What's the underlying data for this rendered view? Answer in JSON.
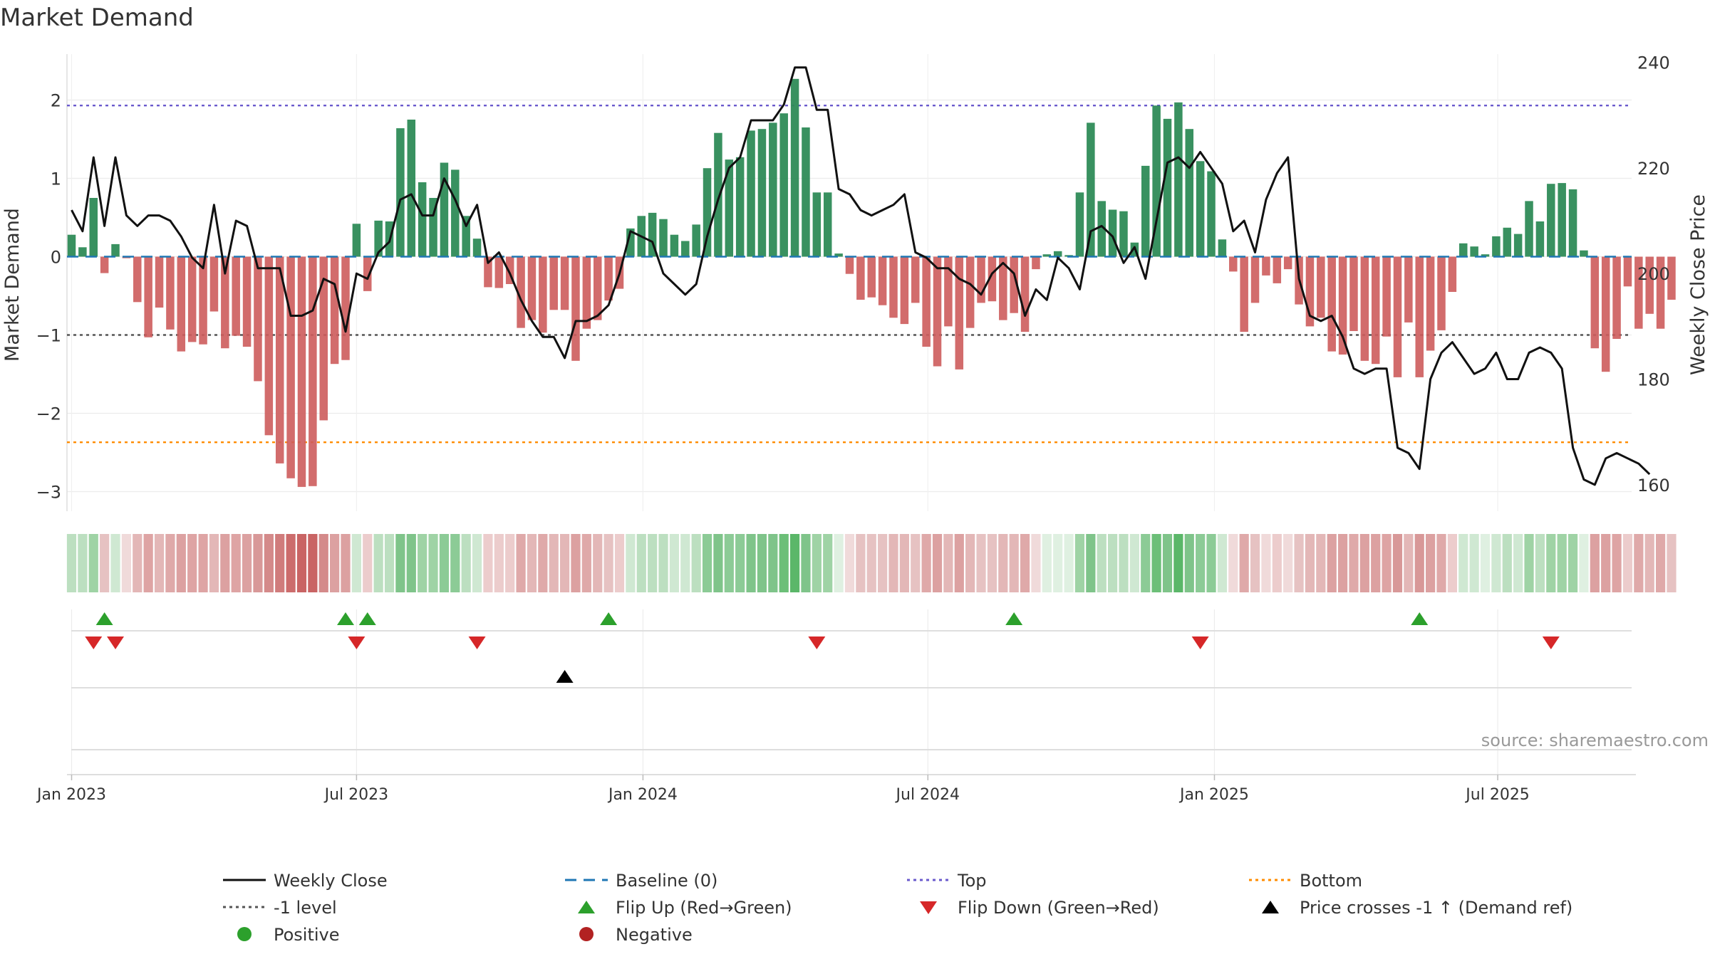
{
  "chart_data": {
    "type": "bar+line",
    "title": "Market Demand",
    "ylabel_left": "Market Demand",
    "ylabel_right": "Weekly Close Price",
    "ylim_left": [
      -3.25,
      2.55
    ],
    "ylim_right": [
      155,
      241
    ],
    "yticks_left": [
      2,
      1,
      0,
      -1,
      -2,
      -3
    ],
    "ytick_labels_left": [
      "2",
      "1",
      "0",
      "−1",
      "−2",
      "−3"
    ],
    "yticks_right": [
      240,
      220,
      200,
      180,
      160
    ],
    "ytick_labels_right": [
      "240",
      "220",
      "200",
      "180",
      "160"
    ],
    "x_tick_labels": [
      "Jan 2023",
      "Jul 2023",
      "Jan 2024",
      "Jul 2024",
      "Jan 2025",
      "Jul 2025"
    ],
    "x_tick_weeks": [
      1.0,
      27.0,
      53.14,
      79.14,
      105.29,
      131.14
    ],
    "week_count": 145,
    "reference_lines": {
      "top": 1.93,
      "minus_one": -1.0,
      "bottom": -2.37,
      "baseline": 0
    },
    "demand": [
      0.28,
      0.12,
      0.75,
      -0.21,
      0.16,
      -0.02,
      -0.58,
      -1.03,
      -0.65,
      -0.93,
      -1.21,
      -1.09,
      -1.12,
      -0.7,
      -1.17,
      -1.01,
      -1.15,
      -1.59,
      -2.28,
      -2.64,
      -2.83,
      -2.94,
      -2.93,
      -2.09,
      -1.37,
      -1.32,
      0.42,
      -0.44,
      0.46,
      0.45,
      1.64,
      1.75,
      0.95,
      0.75,
      1.2,
      1.11,
      0.52,
      0.23,
      -0.39,
      -0.4,
      -0.35,
      -0.91,
      -0.81,
      -0.97,
      -0.68,
      -0.68,
      -1.33,
      -0.92,
      -0.81,
      -0.56,
      -0.41,
      0.36,
      0.52,
      0.56,
      0.48,
      0.28,
      0.2,
      0.41,
      1.13,
      1.58,
      1.24,
      1.27,
      1.61,
      1.63,
      1.71,
      1.83,
      2.27,
      1.65,
      0.82,
      0.82,
      0.04,
      -0.22,
      -0.55,
      -0.52,
      -0.62,
      -0.78,
      -0.86,
      -0.59,
      -1.15,
      -1.4,
      -0.89,
      -1.44,
      -0.91,
      -0.59,
      -0.57,
      -0.81,
      -0.72,
      -0.96,
      -0.16,
      0.03,
      0.07,
      0.02,
      0.82,
      1.71,
      0.71,
      0.6,
      0.58,
      0.18,
      1.16,
      1.93,
      1.76,
      1.97,
      1.63,
      1.22,
      1.09,
      0.22,
      -0.19,
      -0.96,
      -0.59,
      -0.24,
      -0.34,
      -0.16,
      -0.61,
      -0.89,
      -0.78,
      -1.21,
      -1.25,
      -0.95,
      -1.33,
      -1.37,
      -1.02,
      -1.54,
      -0.84,
      -1.54,
      -1.2,
      -0.94,
      -0.45,
      0.17,
      0.13,
      0.03,
      0.26,
      0.37,
      0.29,
      0.71,
      0.45,
      0.93,
      0.94,
      0.86,
      0.08,
      -1.17,
      -1.47,
      -1.05,
      -0.38,
      -0.92,
      -0.73,
      -0.92,
      -0.55
    ],
    "close": [
      212,
      208,
      222,
      209,
      222,
      211,
      209,
      211,
      211,
      210,
      207,
      203,
      201,
      213,
      200,
      210,
      209,
      201,
      201,
      201,
      192,
      192,
      193,
      199,
      198,
      189,
      200,
      199,
      204,
      206,
      214,
      215,
      211,
      211,
      218,
      214,
      209,
      213,
      202,
      204,
      200,
      195,
      191,
      188,
      188,
      184,
      191,
      191,
      192,
      194,
      200,
      208,
      207,
      206,
      200,
      198,
      196,
      198,
      207,
      214,
      220,
      222,
      229,
      229,
      229,
      232,
      239,
      239,
      231,
      231,
      216,
      215,
      212,
      211,
      212,
      213,
      215,
      204,
      203,
      201,
      201,
      199,
      198,
      196,
      200,
      202,
      200,
      192,
      197,
      195,
      203,
      201,
      197,
      208,
      209,
      207,
      202,
      205,
      199,
      210,
      221,
      222,
      220,
      223,
      220,
      217,
      208,
      210,
      204,
      214,
      219,
      222,
      199,
      192,
      191,
      192,
      188,
      182,
      181,
      182,
      182,
      167,
      166,
      163,
      180,
      185,
      187,
      184,
      181,
      182,
      185,
      180,
      180,
      185,
      186,
      185,
      182,
      167,
      161,
      160,
      165,
      166,
      165,
      164,
      162
    ]
  },
  "strip": {
    "colors": [
      "#bcdfc0",
      "#bcdfc0",
      "#9fd3a5",
      "#e6c2c2",
      "#cfe8d2",
      "#f0dada",
      "#e3b7b7",
      "#dea4a4",
      "#e3b7b7",
      "#dfa9a9",
      "#dca1a1",
      "#dea4a4",
      "#dea4a4",
      "#e3b7b7",
      "#dca1a1",
      "#dea4a4",
      "#dca1a1",
      "#d89898",
      "#d48a8a",
      "#d07c7c",
      "#cc6c6c",
      "#c96464",
      "#c96464",
      "#d48a8a",
      "#dca1a1",
      "#dca1a1",
      "#cfe8d2",
      "#eccccc",
      "#bcdfc0",
      "#bcdfc0",
      "#7fc48a",
      "#7fc48a",
      "#9fd3a5",
      "#9fd3a5",
      "#8ccb96",
      "#8ccb96",
      "#bcdfc0",
      "#cfe8d2",
      "#eccccc",
      "#eccccc",
      "#eccccc",
      "#dfa9a9",
      "#e3b7b7",
      "#dfa9a9",
      "#e3b7b7",
      "#e3b7b7",
      "#dca1a1",
      "#dfa9a9",
      "#e3b7b7",
      "#e6c2c2",
      "#eccccc",
      "#cfe8d2",
      "#bcdfc0",
      "#bcdfc0",
      "#bcdfc0",
      "#cfe8d2",
      "#cfe8d2",
      "#bcdfc0",
      "#8ccb96",
      "#7fc48a",
      "#8ccb96",
      "#8ccb96",
      "#7fc48a",
      "#7fc48a",
      "#7fc48a",
      "#6cbf78",
      "#5bb769",
      "#7fc48a",
      "#9fd3a5",
      "#9fd3a5",
      "#dff0e1",
      "#f0dada",
      "#e6c2c2",
      "#e6c2c2",
      "#e6c2c2",
      "#e3b7b7",
      "#e3b7b7",
      "#e6c2c2",
      "#dfa9a9",
      "#dca1a1",
      "#e3b7b7",
      "#dca1a1",
      "#e3b7b7",
      "#e6c2c2",
      "#e6c2c2",
      "#e3b7b7",
      "#e3b7b7",
      "#dfa9a9",
      "#f0dada",
      "#dff0e1",
      "#dff0e1",
      "#dff0e1",
      "#9fd3a5",
      "#7fc48a",
      "#bcdfc0",
      "#bcdfc0",
      "#bcdfc0",
      "#cfe8d2",
      "#8ccb96",
      "#6cbf78",
      "#7fc48a",
      "#5bb769",
      "#7fc48a",
      "#8ccb96",
      "#8ccb96",
      "#cfe8d2",
      "#f0dada",
      "#dfa9a9",
      "#e6c2c2",
      "#f0dada",
      "#eccccc",
      "#f0dada",
      "#e6c2c2",
      "#e3b7b7",
      "#e3b7b7",
      "#dca1a1",
      "#dca1a1",
      "#dfa9a9",
      "#dca1a1",
      "#dca1a1",
      "#dea4a4",
      "#d89898",
      "#e3b7b7",
      "#d89898",
      "#dca1a1",
      "#dfa9a9",
      "#eccccc",
      "#cfe8d2",
      "#cfe8d2",
      "#dff0e1",
      "#cfe8d2",
      "#bcdfc0",
      "#cfe8d2",
      "#9fd3a5",
      "#bcdfc0",
      "#9fd3a5",
      "#9fd3a5",
      "#9fd3a5",
      "#dff0e1",
      "#dca1a1",
      "#dca1a1",
      "#dea4a4",
      "#eccccc",
      "#dfa9a9",
      "#e3b7b7",
      "#dfa9a9",
      "#e6c2c2"
    ]
  },
  "markers": {
    "flip_up_weeks": [
      4,
      26,
      28,
      50,
      87,
      124
    ],
    "flip_down_weeks": [
      3,
      5,
      27,
      38,
      69,
      104,
      136
    ],
    "price_cross_weeks": [
      46
    ]
  },
  "legend": {
    "weekly_close": "Weekly Close",
    "baseline": "Baseline (0)",
    "top": "Top",
    "bottom": "Bottom",
    "minus_one": "-1 level",
    "flip_up": "Flip Up (Red→Green)",
    "flip_down": "Flip Down (Green→Red)",
    "price_cross": "Price crosses -1 ↑ (Demand ref)",
    "positive": "Positive",
    "negative": "Negative"
  },
  "source": "source: sharemaestro.com",
  "colors": {
    "positive_bar": "#2e8b57",
    "negative_bar": "#cd5c5c",
    "close_line": "#111111",
    "baseline": "#1f77b4",
    "top": "#6a5acd",
    "bottom": "#ff8c00",
    "minus_one": "#555555",
    "flip_up": "#2ca02c",
    "flip_down": "#d62728",
    "price_cross": "#000000",
    "positive_dot": "#2ca02c",
    "negative_dot": "#b22222"
  }
}
